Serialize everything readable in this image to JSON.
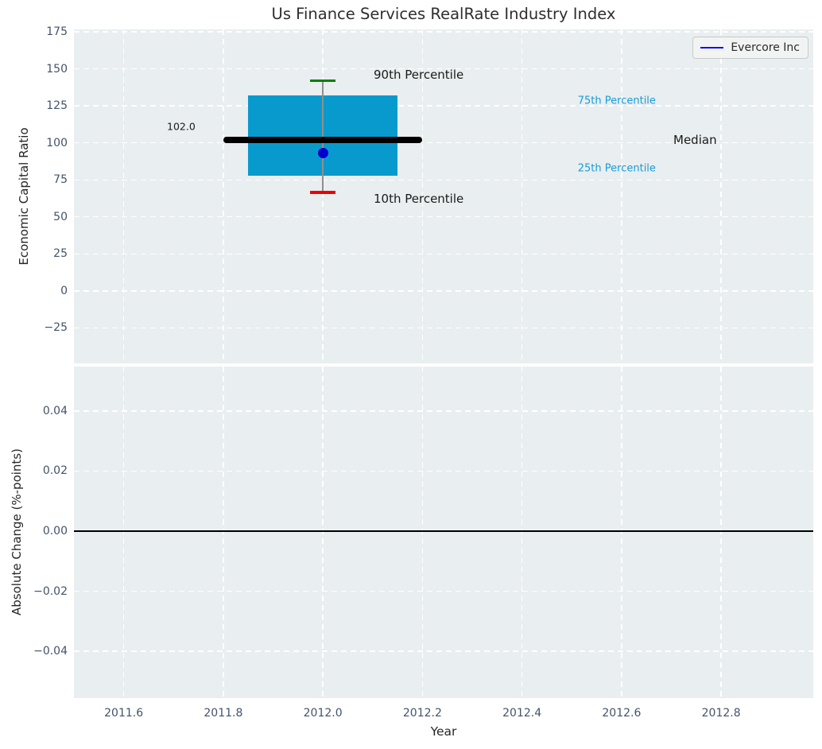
{
  "title": "Us Finance Services RealRate Industry Index",
  "legend": {
    "label": "Evercore Inc"
  },
  "colors": {
    "axes_bg": "#e9eef0",
    "grid": "#ffffff",
    "tick_label": "#43536b",
    "title_text": "#2e2e2e",
    "axis_label": "#262626",
    "box_fill": "#099acd",
    "median_line": "#000000",
    "p90_cap": "#008000",
    "p10_cap": "#ee0000",
    "whisker": "#8f8f8f",
    "company_dot": "#0000cc",
    "legend_line": "#0d0dff",
    "percentile_text": "#1b9cd3",
    "zero_line": "#000000"
  },
  "chart_data": [
    {
      "type": "boxplot",
      "subplot": "top",
      "title": "Us Finance Services RealRate Industry Index",
      "ylabel": "Economic Capital Ratio",
      "xlim": [
        2011.5,
        2012.985
      ],
      "ylim": [
        -48.9,
        176.6
      ],
      "grid": true,
      "xgrid": [
        2011.6,
        2011.8,
        2012.0,
        2012.2,
        2012.4,
        2012.6,
        2012.8
      ],
      "yticks": [
        {
          "v": 175,
          "label": "175"
        },
        {
          "v": 150,
          "label": "150"
        },
        {
          "v": 125,
          "label": "125"
        },
        {
          "v": 100,
          "label": "100"
        },
        {
          "v": 75,
          "label": "75"
        },
        {
          "v": 50,
          "label": "50"
        },
        {
          "v": 25,
          "label": "25"
        },
        {
          "v": 0,
          "label": "0"
        },
        {
          "v": -25,
          "label": "−25"
        }
      ],
      "legend": {
        "label": "Evercore Inc",
        "position": "upper right"
      },
      "box": {
        "x": 2012.0,
        "p90": 142,
        "p75": 132,
        "median": 102.0,
        "p25": 78,
        "p10": 66.5,
        "company_name": "Evercore Inc",
        "company_value": 93,
        "box_half_width": 0.15,
        "median_half_width": 0.2,
        "cap_half_width": 0.025
      },
      "annotations": [
        {
          "text": "90th Percentile",
          "x": 2012.102,
          "y": 146,
          "color": "#1a1a1a",
          "size": 15,
          "align": "left"
        },
        {
          "text": "10th Percentile",
          "x": 2012.102,
          "y": 62,
          "color": "#1a1a1a",
          "size": 15,
          "align": "left"
        },
        {
          "text": "75th Percentile",
          "x": 2012.512,
          "y": 128.5,
          "color": "#1b9cd3",
          "size": 13,
          "align": "left"
        },
        {
          "text": "25th Percentile",
          "x": 2012.512,
          "y": 82.5,
          "color": "#1b9cd3",
          "size": 13,
          "align": "left"
        },
        {
          "text": "Median",
          "x": 2012.704,
          "y": 102,
          "color": "#1a1a1a",
          "size": 15,
          "align": "left"
        },
        {
          "text": "102.0",
          "x": 2011.744,
          "y": 111,
          "color": "#1a1a1a",
          "size": 12.5,
          "align": "right"
        }
      ]
    },
    {
      "type": "line",
      "subplot": "bottom",
      "ylabel": "Absolute Change (%-points)",
      "xlabel": "Year",
      "xlim": [
        2011.5,
        2012.985
      ],
      "ylim": [
        -0.0556,
        0.0548
      ],
      "grid": true,
      "yticks": [
        {
          "v": 0.04,
          "label": "0.04"
        },
        {
          "v": 0.02,
          "label": "0.02"
        },
        {
          "v": 0.0,
          "label": "0.00"
        },
        {
          "v": -0.02,
          "label": "−0.02"
        },
        {
          "v": -0.04,
          "label": "−0.04"
        }
      ],
      "xticks": [
        {
          "v": 2011.6,
          "label": "2011.6"
        },
        {
          "v": 2011.8,
          "label": "2011.8"
        },
        {
          "v": 2012.0,
          "label": "2012.0"
        },
        {
          "v": 2012.2,
          "label": "2012.2"
        },
        {
          "v": 2012.4,
          "label": "2012.4"
        },
        {
          "v": 2012.6,
          "label": "2012.6"
        },
        {
          "v": 2012.8,
          "label": "2012.8"
        }
      ],
      "zero_line": 0.0,
      "series": []
    }
  ]
}
